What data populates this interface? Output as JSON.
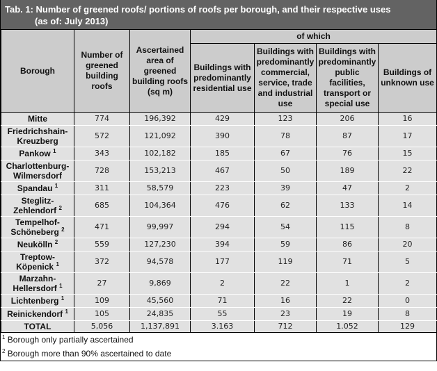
{
  "title": {
    "line1": "Tab. 1: Number of greened roofs/ portions of roofs per borough, and their respective uses",
    "line2": "(as of: July 2013)"
  },
  "header": {
    "borough": "Borough",
    "number": "Number of greened building roofs",
    "area": "Ascertained area of greened building roofs (sq m)",
    "of_which": "of which",
    "residential": "Buildings with predominantly residential use",
    "commercial": "Buildings with predominantly commercial, service, trade and industrial use",
    "public": "Buildings with predominantly public facilities, transport or special use",
    "unknown": "Buildings of unknown use"
  },
  "rows": [
    {
      "borough": "Mitte",
      "note": "",
      "number": "774",
      "area": "196,392",
      "residential": "429",
      "commercial": "123",
      "public": "206",
      "unknown": "16"
    },
    {
      "borough": "Friedrichshain-Kreuzberg",
      "note": "",
      "number": "572",
      "area": "121,092",
      "residential": "390",
      "commercial": "78",
      "public": "87",
      "unknown": "17"
    },
    {
      "borough": "Pankow",
      "note": "1",
      "number": "343",
      "area": "102,182",
      "residential": "185",
      "commercial": "67",
      "public": "76",
      "unknown": "15"
    },
    {
      "borough": "Charlottenburg-Wilmersdorf",
      "note": "",
      "number": "728",
      "area": "153,213",
      "residential": "467",
      "commercial": "50",
      "public": "189",
      "unknown": "22"
    },
    {
      "borough": "Spandau",
      "note": "1",
      "number": "311",
      "area": "58,579",
      "residential": "223",
      "commercial": "39",
      "public": "47",
      "unknown": "2"
    },
    {
      "borough": "Steglitz-Zehlendorf",
      "note": "2",
      "number": "685",
      "area": "104,364",
      "residential": "476",
      "commercial": "62",
      "public": "133",
      "unknown": "14"
    },
    {
      "borough": "Tempelhof-Schöneberg",
      "note": "2",
      "number": "471",
      "area": "99,997",
      "residential": "294",
      "commercial": "54",
      "public": "115",
      "unknown": "8"
    },
    {
      "borough": "Neukölln",
      "note": "2",
      "number": "559",
      "area": "127,230",
      "residential": "394",
      "commercial": "59",
      "public": "86",
      "unknown": "20"
    },
    {
      "borough": "Treptow-Köpenick",
      "note": "1",
      "number": "372",
      "area": "94,578",
      "residential": "177",
      "commercial": "119",
      "public": "71",
      "unknown": "5"
    },
    {
      "borough": "Marzahn-Hellersdorf",
      "note": "1",
      "number": "27",
      "area": "9,869",
      "residential": "2",
      "commercial": "22",
      "public": "1",
      "unknown": "2"
    },
    {
      "borough": "Lichtenberg",
      "note": "1",
      "number": "109",
      "area": "45,560",
      "residential": "71",
      "commercial": "16",
      "public": "22",
      "unknown": "0"
    },
    {
      "borough": "Reinickendorf",
      "note": "1",
      "number": "105",
      "area": "24,835",
      "residential": "55",
      "commercial": "23",
      "public": "19",
      "unknown": "8"
    }
  ],
  "total": {
    "label": "TOTAL",
    "number": "5,056",
    "area": "1,137,891",
    "residential": "3.163",
    "commercial": "712",
    "public": "1.052",
    "unknown": "129"
  },
  "footnotes": [
    {
      "mark": "1",
      "text": "Borough only partially ascertained"
    },
    {
      "mark": "2",
      "text": "Borough more than 90% ascertained to date"
    }
  ],
  "colors": {
    "title_bg": "#636363",
    "header_bg": "#cccccc",
    "row_bg": "#e1e1e1"
  }
}
